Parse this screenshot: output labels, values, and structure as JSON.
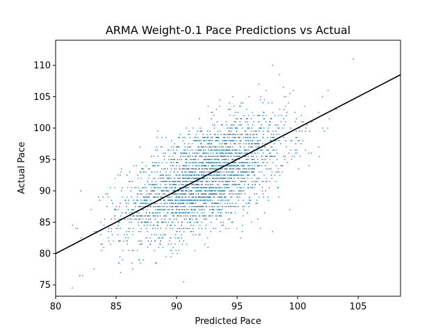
{
  "chart_data": {
    "type": "scatter",
    "title": "ARMA Weight-0.1 Pace Predictions vs Actual",
    "xlabel": "Predicted Pace",
    "ylabel": "Actual Pace",
    "xlim": [
      80,
      108.5
    ],
    "ylim": [
      73.2,
      114
    ],
    "xticks": [
      "80",
      "85",
      "90",
      "95",
      "100",
      "105"
    ],
    "yticks": [
      "75",
      "80",
      "85",
      "90",
      "95",
      "100",
      "105",
      "110"
    ],
    "point_color": "#1f77b4",
    "line_color": "#000000",
    "reference_line": {
      "x": [
        80,
        108.5
      ],
      "y": [
        80,
        108.5
      ]
    },
    "scatter_summary": {
      "point_count": 3000,
      "x_mean": 92.3,
      "x_std": 3.4,
      "y_mean": 92.0,
      "y_std": 5.2,
      "y_step": 0.5,
      "grid": false
    }
  }
}
